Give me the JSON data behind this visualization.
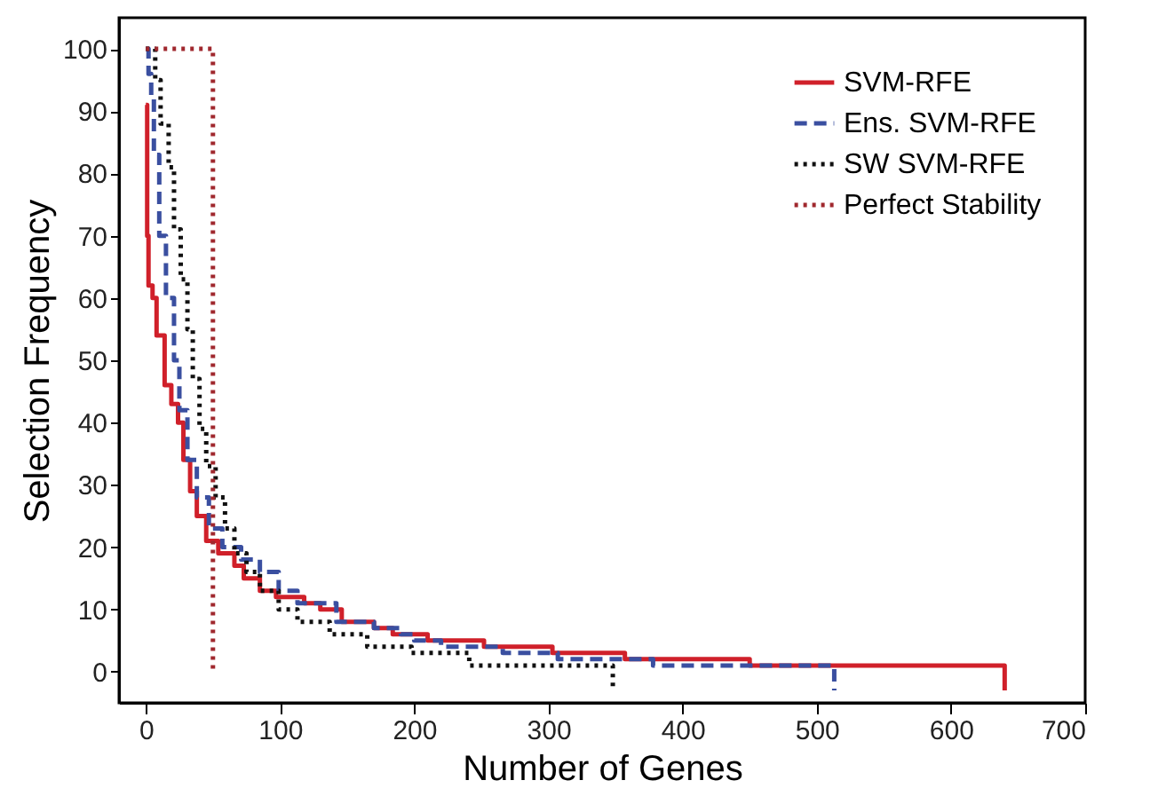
{
  "chart_data": {
    "type": "step",
    "xlabel": "Number of Genes",
    "ylabel": "Selection Frequency",
    "xlim": [
      -20,
      700
    ],
    "ylim": [
      -5,
      105
    ],
    "xticks": [
      0,
      100,
      200,
      300,
      400,
      500,
      600,
      700
    ],
    "yticks": [
      0,
      10,
      20,
      30,
      40,
      50,
      60,
      70,
      80,
      90,
      100
    ],
    "grid": false,
    "legend": "top right",
    "marker": "none",
    "series": [
      {
        "name": "SVM-RFE",
        "color": "#d0202a",
        "line_style": "solid",
        "x": [
          0,
          1,
          2,
          5,
          8,
          14,
          19,
          24,
          28,
          33,
          38,
          45,
          54,
          66,
          73,
          85,
          97,
          118,
          130,
          146,
          170,
          184,
          210,
          252,
          303,
          357,
          450,
          640
        ],
        "values": [
          91,
          70,
          62,
          60,
          54,
          46,
          43,
          40,
          34,
          29,
          25,
          21,
          19,
          17,
          15,
          13,
          12,
          11,
          10,
          8,
          7,
          6,
          5,
          4,
          3,
          2,
          1,
          -3
        ]
      },
      {
        "name": "Ens. SVM-RFE",
        "color": "#3a4fa0",
        "line_style": "dashed",
        "x": [
          0,
          2,
          4,
          6,
          10,
          15,
          21,
          25,
          31,
          38,
          47,
          57,
          71,
          85,
          99,
          113,
          142,
          170,
          190,
          200,
          220,
          266,
          307,
          378,
          513
        ],
        "values": [
          100,
          96,
          92,
          83,
          70,
          60,
          50,
          42,
          34,
          28,
          23,
          20,
          18,
          16,
          13,
          11,
          8,
          7,
          6,
          5,
          4,
          3,
          2,
          1,
          -3
        ]
      },
      {
        "name": "SW SVM-RFE",
        "color": "#111111",
        "line_style": "dotted",
        "x": [
          0,
          7,
          11,
          17,
          21,
          26,
          31,
          35,
          40,
          45,
          52,
          59,
          66,
          75,
          85,
          99,
          113,
          137,
          165,
          198,
          241,
          348
        ],
        "values": [
          100,
          95,
          88,
          81,
          71,
          63,
          55,
          47,
          39,
          33,
          28,
          23,
          19,
          16,
          13,
          10,
          8,
          6,
          4,
          3,
          1,
          -3
        ]
      },
      {
        "name": "Perfect Stability",
        "color": "#a0282e",
        "line_style": "dotted",
        "x": [
          0,
          50
        ],
        "values": [
          100,
          0
        ]
      }
    ]
  }
}
